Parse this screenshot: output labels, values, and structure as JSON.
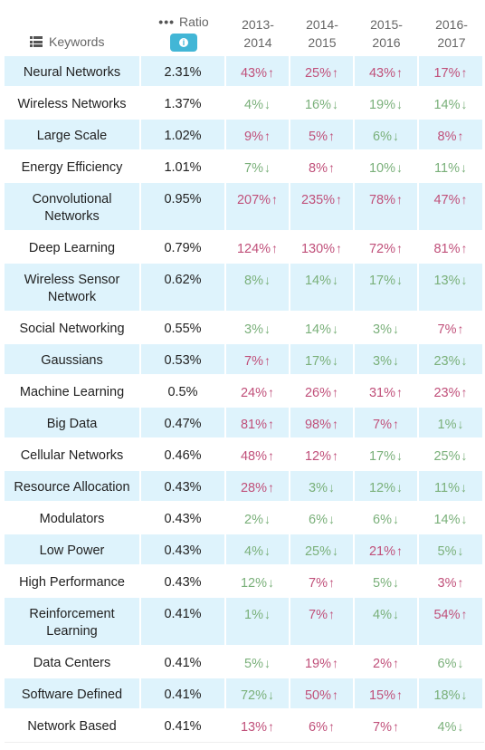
{
  "header": {
    "keywords_label": "Keywords",
    "ratio_label": "Ratio",
    "info_icon_label": "i",
    "years": [
      "2013-\n2014",
      "2014-\n2015",
      "2015-\n2016",
      "2016-\n2017"
    ],
    "year_lines": [
      [
        "2013-",
        "2014"
      ],
      [
        "2014-",
        "2015"
      ],
      [
        "2015-",
        "2016"
      ],
      [
        "2016-",
        "2017"
      ]
    ]
  },
  "colors": {
    "up": "#c0507a",
    "down": "#7ab07a",
    "row_alt": "#def3fc",
    "badge": "#42b6d6"
  },
  "rows": [
    {
      "keyword": "Neural Networks",
      "ratio": "2.31%",
      "changes": [
        [
          "43%",
          "up"
        ],
        [
          "25%",
          "up"
        ],
        [
          "43%",
          "up"
        ],
        [
          "17%",
          "up"
        ]
      ]
    },
    {
      "keyword": "Wireless Networks",
      "ratio": "1.37%",
      "changes": [
        [
          "4%",
          "down"
        ],
        [
          "16%",
          "down"
        ],
        [
          "19%",
          "down"
        ],
        [
          "14%",
          "down"
        ]
      ]
    },
    {
      "keyword": "Large Scale",
      "ratio": "1.02%",
      "changes": [
        [
          "9%",
          "up"
        ],
        [
          "5%",
          "up"
        ],
        [
          "6%",
          "down"
        ],
        [
          "8%",
          "up"
        ]
      ]
    },
    {
      "keyword": "Energy Efficiency",
      "ratio": "1.01%",
      "changes": [
        [
          "7%",
          "down"
        ],
        [
          "8%",
          "up"
        ],
        [
          "10%",
          "down"
        ],
        [
          "11%",
          "down"
        ]
      ]
    },
    {
      "keyword": "Convolutional Networks",
      "ratio": "0.95%",
      "changes": [
        [
          "207%",
          "up"
        ],
        [
          "235%",
          "up"
        ],
        [
          "78%",
          "up"
        ],
        [
          "47%",
          "up"
        ]
      ]
    },
    {
      "keyword": "Deep Learning",
      "ratio": "0.79%",
      "changes": [
        [
          "124%",
          "up"
        ],
        [
          "130%",
          "up"
        ],
        [
          "72%",
          "up"
        ],
        [
          "81%",
          "up"
        ]
      ]
    },
    {
      "keyword": "Wireless Sensor Network",
      "ratio": "0.62%",
      "changes": [
        [
          "8%",
          "down"
        ],
        [
          "14%",
          "down"
        ],
        [
          "17%",
          "down"
        ],
        [
          "13%",
          "down"
        ]
      ]
    },
    {
      "keyword": "Social Networking",
      "ratio": "0.55%",
      "changes": [
        [
          "3%",
          "down"
        ],
        [
          "14%",
          "down"
        ],
        [
          "3%",
          "down"
        ],
        [
          "7%",
          "up"
        ]
      ]
    },
    {
      "keyword": "Gaussians",
      "ratio": "0.53%",
      "changes": [
        [
          "7%",
          "up"
        ],
        [
          "17%",
          "down"
        ],
        [
          "3%",
          "down"
        ],
        [
          "23%",
          "down"
        ]
      ]
    },
    {
      "keyword": "Machine Learning",
      "ratio": "0.5%",
      "changes": [
        [
          "24%",
          "up"
        ],
        [
          "26%",
          "up"
        ],
        [
          "31%",
          "up"
        ],
        [
          "23%",
          "up"
        ]
      ]
    },
    {
      "keyword": "Big Data",
      "ratio": "0.47%",
      "changes": [
        [
          "81%",
          "up"
        ],
        [
          "98%",
          "up"
        ],
        [
          "7%",
          "up"
        ],
        [
          "1%",
          "down"
        ]
      ]
    },
    {
      "keyword": "Cellular Networks",
      "ratio": "0.46%",
      "changes": [
        [
          "48%",
          "up"
        ],
        [
          "12%",
          "up"
        ],
        [
          "17%",
          "down"
        ],
        [
          "25%",
          "down"
        ]
      ]
    },
    {
      "keyword": "Resource Allocation",
      "ratio": "0.43%",
      "changes": [
        [
          "28%",
          "up"
        ],
        [
          "3%",
          "down"
        ],
        [
          "12%",
          "down"
        ],
        [
          "11%",
          "down"
        ]
      ]
    },
    {
      "keyword": "Modulators",
      "ratio": "0.43%",
      "changes": [
        [
          "2%",
          "down"
        ],
        [
          "6%",
          "down"
        ],
        [
          "6%",
          "down"
        ],
        [
          "14%",
          "down"
        ]
      ]
    },
    {
      "keyword": "Low Power",
      "ratio": "0.43%",
      "changes": [
        [
          "4%",
          "down"
        ],
        [
          "25%",
          "down"
        ],
        [
          "21%",
          "up"
        ],
        [
          "5%",
          "down"
        ]
      ]
    },
    {
      "keyword": "High Performance",
      "ratio": "0.43%",
      "changes": [
        [
          "12%",
          "down"
        ],
        [
          "7%",
          "up"
        ],
        [
          "5%",
          "down"
        ],
        [
          "3%",
          "up"
        ]
      ]
    },
    {
      "keyword": "Reinforcement Learning",
      "ratio": "0.41%",
      "changes": [
        [
          "1%",
          "down"
        ],
        [
          "7%",
          "up"
        ],
        [
          "4%",
          "down"
        ],
        [
          "54%",
          "up"
        ]
      ]
    },
    {
      "keyword": "Data Centers",
      "ratio": "0.41%",
      "changes": [
        [
          "5%",
          "down"
        ],
        [
          "19%",
          "up"
        ],
        [
          "2%",
          "up"
        ],
        [
          "6%",
          "down"
        ]
      ]
    },
    {
      "keyword": "Software Defined",
      "ratio": "0.41%",
      "changes": [
        [
          "72%",
          "down"
        ],
        [
          "50%",
          "up"
        ],
        [
          "15%",
          "up"
        ],
        [
          "18%",
          "down"
        ]
      ]
    },
    {
      "keyword": "Network Based",
      "ratio": "0.41%",
      "changes": [
        [
          "13%",
          "up"
        ],
        [
          "6%",
          "up"
        ],
        [
          "7%",
          "up"
        ],
        [
          "4%",
          "down"
        ]
      ]
    }
  ]
}
